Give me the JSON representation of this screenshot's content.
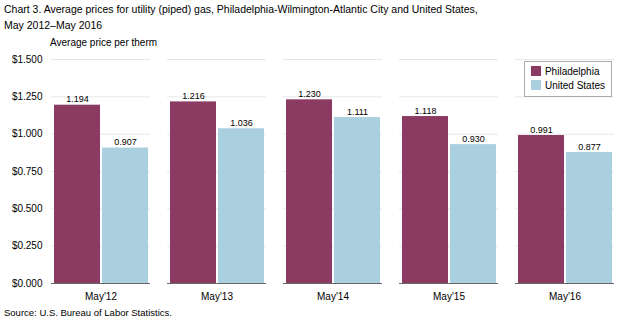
{
  "chart_data": {
    "type": "bar",
    "title": "Chart 3. Average prices for utility (piped) gas, Philadelphia-Wilmington-Atlantic City and United States,",
    "subtitle": "May 2012–May 2016",
    "ylabel": "Average price per therm",
    "source": "Source: U.S. Bureau of Labor Statistics.",
    "categories": [
      "May'12",
      "May'13",
      "May'14",
      "May'15",
      "May'16"
    ],
    "series": [
      {
        "name": "Philadelphia",
        "color": "#8B3A62",
        "values": [
          1.194,
          1.216,
          1.23,
          1.118,
          0.991
        ],
        "value_labels": [
          "1.194",
          "1.216",
          "1.230",
          "1.118",
          "0.991"
        ]
      },
      {
        "name": "United States",
        "color": "#AACFDF",
        "values": [
          0.907,
          1.036,
          1.111,
          0.93,
          0.877
        ],
        "value_labels": [
          "0.907",
          "1.036",
          "1.111",
          "0.930",
          "0.877"
        ]
      }
    ],
    "ylim": [
      0,
      1.5
    ],
    "yticks": [
      {
        "value": 0.0,
        "label": "$0.000"
      },
      {
        "value": 0.25,
        "label": "$0.250"
      },
      {
        "value": 0.5,
        "label": "$0.500"
      },
      {
        "value": 0.75,
        "label": "$0.750"
      },
      {
        "value": 1.0,
        "label": "$1.000"
      },
      {
        "value": 1.25,
        "label": "$1.250"
      },
      {
        "value": 1.5,
        "label": "$1.500"
      }
    ],
    "grid": true,
    "legend": "upper right",
    "data_labels": true
  }
}
